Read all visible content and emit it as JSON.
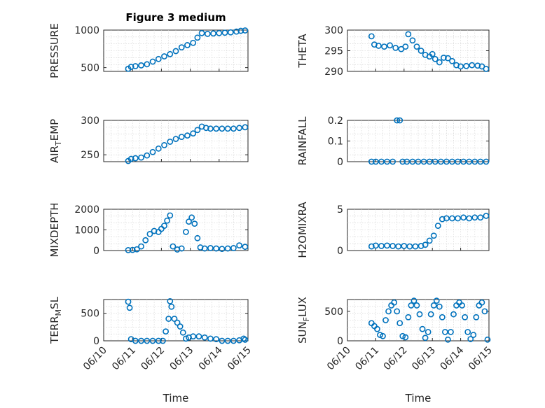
{
  "figure_title": "Figure 3 medium",
  "colors": {
    "marker": "#0072BD",
    "axis": "#262626",
    "grid": "#d0d0d0"
  },
  "chart_data": [
    {
      "type": "scatter",
      "ylabel": "PRESSURE",
      "xlabel": "",
      "title": "Figure 3 medium",
      "xlim": [
        "06/10",
        "06/15"
      ],
      "ylim": [
        450,
        1000
      ],
      "yticks": [
        "500",
        "1000"
      ],
      "ytick_values": [
        500,
        1000
      ],
      "xticks": [],
      "grid": true,
      "points": [
        [
          10.85,
          485
        ],
        [
          10.95,
          510
        ],
        [
          11.1,
          520
        ],
        [
          11.3,
          530
        ],
        [
          11.5,
          545
        ],
        [
          11.7,
          580
        ],
        [
          11.9,
          615
        ],
        [
          12.1,
          650
        ],
        [
          12.3,
          680
        ],
        [
          12.5,
          720
        ],
        [
          12.7,
          770
        ],
        [
          12.9,
          800
        ],
        [
          13.1,
          830
        ],
        [
          13.25,
          900
        ],
        [
          13.4,
          960
        ],
        [
          13.6,
          950
        ],
        [
          13.8,
          955
        ],
        [
          14.0,
          960
        ],
        [
          14.2,
          965
        ],
        [
          14.4,
          970
        ],
        [
          14.6,
          980
        ],
        [
          14.75,
          990
        ],
        [
          14.9,
          995
        ]
      ]
    },
    {
      "type": "scatter",
      "ylabel": "THETA",
      "xlabel": "",
      "xlim": [
        "06/10",
        "06/15"
      ],
      "ylim": [
        290,
        300
      ],
      "yticks": [
        "290",
        "295",
        "300"
      ],
      "ytick_values": [
        290,
        295,
        300
      ],
      "xticks": [],
      "grid": true,
      "points": [
        [
          10.85,
          298.5
        ],
        [
          10.95,
          296.5
        ],
        [
          11.1,
          296.2
        ],
        [
          11.3,
          296.0
        ],
        [
          11.5,
          296.3
        ],
        [
          11.7,
          295.7
        ],
        [
          11.9,
          295.4
        ],
        [
          12.05,
          296.0
        ],
        [
          12.15,
          299.0
        ],
        [
          12.3,
          297.5
        ],
        [
          12.45,
          296.0
        ],
        [
          12.6,
          295.0
        ],
        [
          12.75,
          294.0
        ],
        [
          12.9,
          293.6
        ],
        [
          13.0,
          294.2
        ],
        [
          13.1,
          293.0
        ],
        [
          13.25,
          292.2
        ],
        [
          13.4,
          293.3
        ],
        [
          13.55,
          293.2
        ],
        [
          13.7,
          292.5
        ],
        [
          13.85,
          291.5
        ],
        [
          14.0,
          291.2
        ],
        [
          14.2,
          291.3
        ],
        [
          14.4,
          291.5
        ],
        [
          14.6,
          291.4
        ],
        [
          14.75,
          291.2
        ],
        [
          14.9,
          290.6
        ]
      ]
    },
    {
      "type": "scatter",
      "ylabel": "AIR_TEMP",
      "xlabel": "",
      "xlim": [
        "06/10",
        "06/15"
      ],
      "ylim": [
        240,
        300
      ],
      "yticks": [
        "250",
        "300"
      ],
      "ytick_values": [
        250,
        300
      ],
      "xticks": [],
      "grid": true,
      "points": [
        [
          10.85,
          241
        ],
        [
          10.95,
          244
        ],
        [
          11.1,
          245
        ],
        [
          11.3,
          246
        ],
        [
          11.5,
          249
        ],
        [
          11.7,
          254
        ],
        [
          11.9,
          259
        ],
        [
          12.1,
          264
        ],
        [
          12.3,
          269
        ],
        [
          12.5,
          273
        ],
        [
          12.7,
          276
        ],
        [
          12.9,
          278
        ],
        [
          13.1,
          281
        ],
        [
          13.25,
          286
        ],
        [
          13.4,
          291
        ],
        [
          13.55,
          289
        ],
        [
          13.7,
          288
        ],
        [
          13.9,
          288
        ],
        [
          14.1,
          288
        ],
        [
          14.3,
          288
        ],
        [
          14.5,
          288
        ],
        [
          14.7,
          289
        ],
        [
          14.9,
          290
        ]
      ]
    },
    {
      "type": "scatter",
      "ylabel": "RAINFALL",
      "xlabel": "",
      "xlim": [
        "06/10",
        "06/15"
      ],
      "ylim": [
        0,
        0.2
      ],
      "yticks": [
        "0",
        "0.1",
        "0.2"
      ],
      "ytick_values": [
        0,
        0.1,
        0.2
      ],
      "xticks": [],
      "grid": true,
      "points": [
        [
          10.85,
          0
        ],
        [
          11.0,
          0
        ],
        [
          11.2,
          0
        ],
        [
          11.4,
          0
        ],
        [
          11.6,
          0
        ],
        [
          11.75,
          0.2
        ],
        [
          11.85,
          0.2
        ],
        [
          11.95,
          0
        ],
        [
          12.1,
          0
        ],
        [
          12.3,
          0
        ],
        [
          12.5,
          0
        ],
        [
          12.7,
          0
        ],
        [
          12.9,
          0
        ],
        [
          13.1,
          0
        ],
        [
          13.3,
          0
        ],
        [
          13.5,
          0
        ],
        [
          13.7,
          0
        ],
        [
          13.9,
          0
        ],
        [
          14.1,
          0
        ],
        [
          14.3,
          0
        ],
        [
          14.5,
          0
        ],
        [
          14.7,
          0
        ],
        [
          14.9,
          0
        ]
      ]
    },
    {
      "type": "scatter",
      "ylabel": "MIXDEPTH",
      "xlabel": "",
      "xlim": [
        "06/10",
        "06/15"
      ],
      "ylim": [
        0,
        2000
      ],
      "yticks": [
        "0",
        "1000",
        "2000"
      ],
      "ytick_values": [
        0,
        1000,
        2000
      ],
      "xticks": [],
      "grid": true,
      "points": [
        [
          10.85,
          20
        ],
        [
          11.0,
          30
        ],
        [
          11.15,
          60
        ],
        [
          11.3,
          200
        ],
        [
          11.45,
          500
        ],
        [
          11.6,
          800
        ],
        [
          11.75,
          950
        ],
        [
          11.9,
          900
        ],
        [
          12.0,
          1050
        ],
        [
          12.1,
          1200
        ],
        [
          12.2,
          1450
        ],
        [
          12.3,
          1700
        ],
        [
          12.4,
          200
        ],
        [
          12.55,
          50
        ],
        [
          12.7,
          100
        ],
        [
          12.85,
          900
        ],
        [
          12.95,
          1400
        ],
        [
          13.05,
          1600
        ],
        [
          13.15,
          1300
        ],
        [
          13.25,
          600
        ],
        [
          13.35,
          150
        ],
        [
          13.5,
          100
        ],
        [
          13.7,
          120
        ],
        [
          13.9,
          100
        ],
        [
          14.1,
          80
        ],
        [
          14.3,
          100
        ],
        [
          14.5,
          120
        ],
        [
          14.7,
          250
        ],
        [
          14.9,
          180
        ]
      ]
    },
    {
      "type": "scatter",
      "ylabel": "H2OMIXRA",
      "xlabel": "",
      "xlim": [
        "06/10",
        "06/15"
      ],
      "ylim": [
        0,
        5
      ],
      "yticks": [
        "0",
        "5"
      ],
      "ytick_values": [
        0,
        5
      ],
      "xticks": [],
      "grid": true,
      "points": [
        [
          10.85,
          0.5
        ],
        [
          11.0,
          0.6
        ],
        [
          11.2,
          0.55
        ],
        [
          11.4,
          0.6
        ],
        [
          11.6,
          0.55
        ],
        [
          11.8,
          0.5
        ],
        [
          12.0,
          0.55
        ],
        [
          12.2,
          0.5
        ],
        [
          12.4,
          0.5
        ],
        [
          12.6,
          0.55
        ],
        [
          12.75,
          0.7
        ],
        [
          12.9,
          1.2
        ],
        [
          13.05,
          1.8
        ],
        [
          13.2,
          3.0
        ],
        [
          13.35,
          3.8
        ],
        [
          13.5,
          3.9
        ],
        [
          13.7,
          3.9
        ],
        [
          13.9,
          3.9
        ],
        [
          14.1,
          4.0
        ],
        [
          14.3,
          3.9
        ],
        [
          14.5,
          4.0
        ],
        [
          14.7,
          4.0
        ],
        [
          14.9,
          4.2
        ]
      ]
    },
    {
      "type": "scatter",
      "ylabel": "TERR_MSL",
      "xlabel": "Time",
      "xlim": [
        "06/10",
        "06/15"
      ],
      "ylim": [
        0,
        750
      ],
      "yticks": [
        "0",
        "500"
      ],
      "ytick_values": [
        0,
        500
      ],
      "xticks": [
        "06/10",
        "06/11",
        "06/12",
        "06/13",
        "06/14",
        "06/15"
      ],
      "grid": true,
      "points": [
        [
          10.85,
          710
        ],
        [
          10.9,
          600
        ],
        [
          10.95,
          30
        ],
        [
          11.1,
          0
        ],
        [
          11.3,
          0
        ],
        [
          11.5,
          0
        ],
        [
          11.7,
          0
        ],
        [
          11.9,
          0
        ],
        [
          12.05,
          0
        ],
        [
          12.15,
          170
        ],
        [
          12.25,
          400
        ],
        [
          12.3,
          720
        ],
        [
          12.35,
          620
        ],
        [
          12.45,
          400
        ],
        [
          12.55,
          330
        ],
        [
          12.65,
          260
        ],
        [
          12.75,
          150
        ],
        [
          12.85,
          40
        ],
        [
          12.95,
          60
        ],
        [
          13.1,
          80
        ],
        [
          13.3,
          80
        ],
        [
          13.5,
          60
        ],
        [
          13.7,
          40
        ],
        [
          13.9,
          30
        ],
        [
          14.1,
          0
        ],
        [
          14.3,
          0
        ],
        [
          14.5,
          0
        ],
        [
          14.7,
          10
        ],
        [
          14.85,
          40
        ],
        [
          14.9,
          20
        ]
      ]
    },
    {
      "type": "scatter",
      "ylabel": "SUN_FLUX",
      "xlabel": "Time",
      "xlim": [
        "06/10",
        "06/15"
      ],
      "ylim": [
        0,
        700
      ],
      "yticks": [
        "0",
        "500"
      ],
      "ytick_values": [
        0,
        500
      ],
      "xticks": [
        "06/10",
        "06/11",
        "06/12",
        "06/13",
        "06/14",
        "06/15"
      ],
      "grid": true,
      "points": [
        [
          10.85,
          300
        ],
        [
          10.95,
          250
        ],
        [
          11.05,
          200
        ],
        [
          11.15,
          100
        ],
        [
          11.25,
          80
        ],
        [
          11.35,
          350
        ],
        [
          11.45,
          500
        ],
        [
          11.55,
          600
        ],
        [
          11.65,
          650
        ],
        [
          11.75,
          500
        ],
        [
          11.85,
          300
        ],
        [
          11.95,
          80
        ],
        [
          12.05,
          60
        ],
        [
          12.15,
          400
        ],
        [
          12.25,
          600
        ],
        [
          12.35,
          680
        ],
        [
          12.45,
          600
        ],
        [
          12.55,
          450
        ],
        [
          12.65,
          200
        ],
        [
          12.75,
          50
        ],
        [
          12.85,
          150
        ],
        [
          12.95,
          450
        ],
        [
          13.05,
          600
        ],
        [
          13.15,
          680
        ],
        [
          13.25,
          580
        ],
        [
          13.35,
          400
        ],
        [
          13.45,
          150
        ],
        [
          13.55,
          20
        ],
        [
          13.65,
          150
        ],
        [
          13.75,
          450
        ],
        [
          13.85,
          600
        ],
        [
          13.95,
          650
        ],
        [
          14.05,
          600
        ],
        [
          14.15,
          400
        ],
        [
          14.25,
          150
        ],
        [
          14.35,
          30
        ],
        [
          14.45,
          100
        ],
        [
          14.55,
          400
        ],
        [
          14.65,
          600
        ],
        [
          14.75,
          650
        ],
        [
          14.85,
          500
        ],
        [
          14.95,
          20
        ]
      ]
    }
  ]
}
